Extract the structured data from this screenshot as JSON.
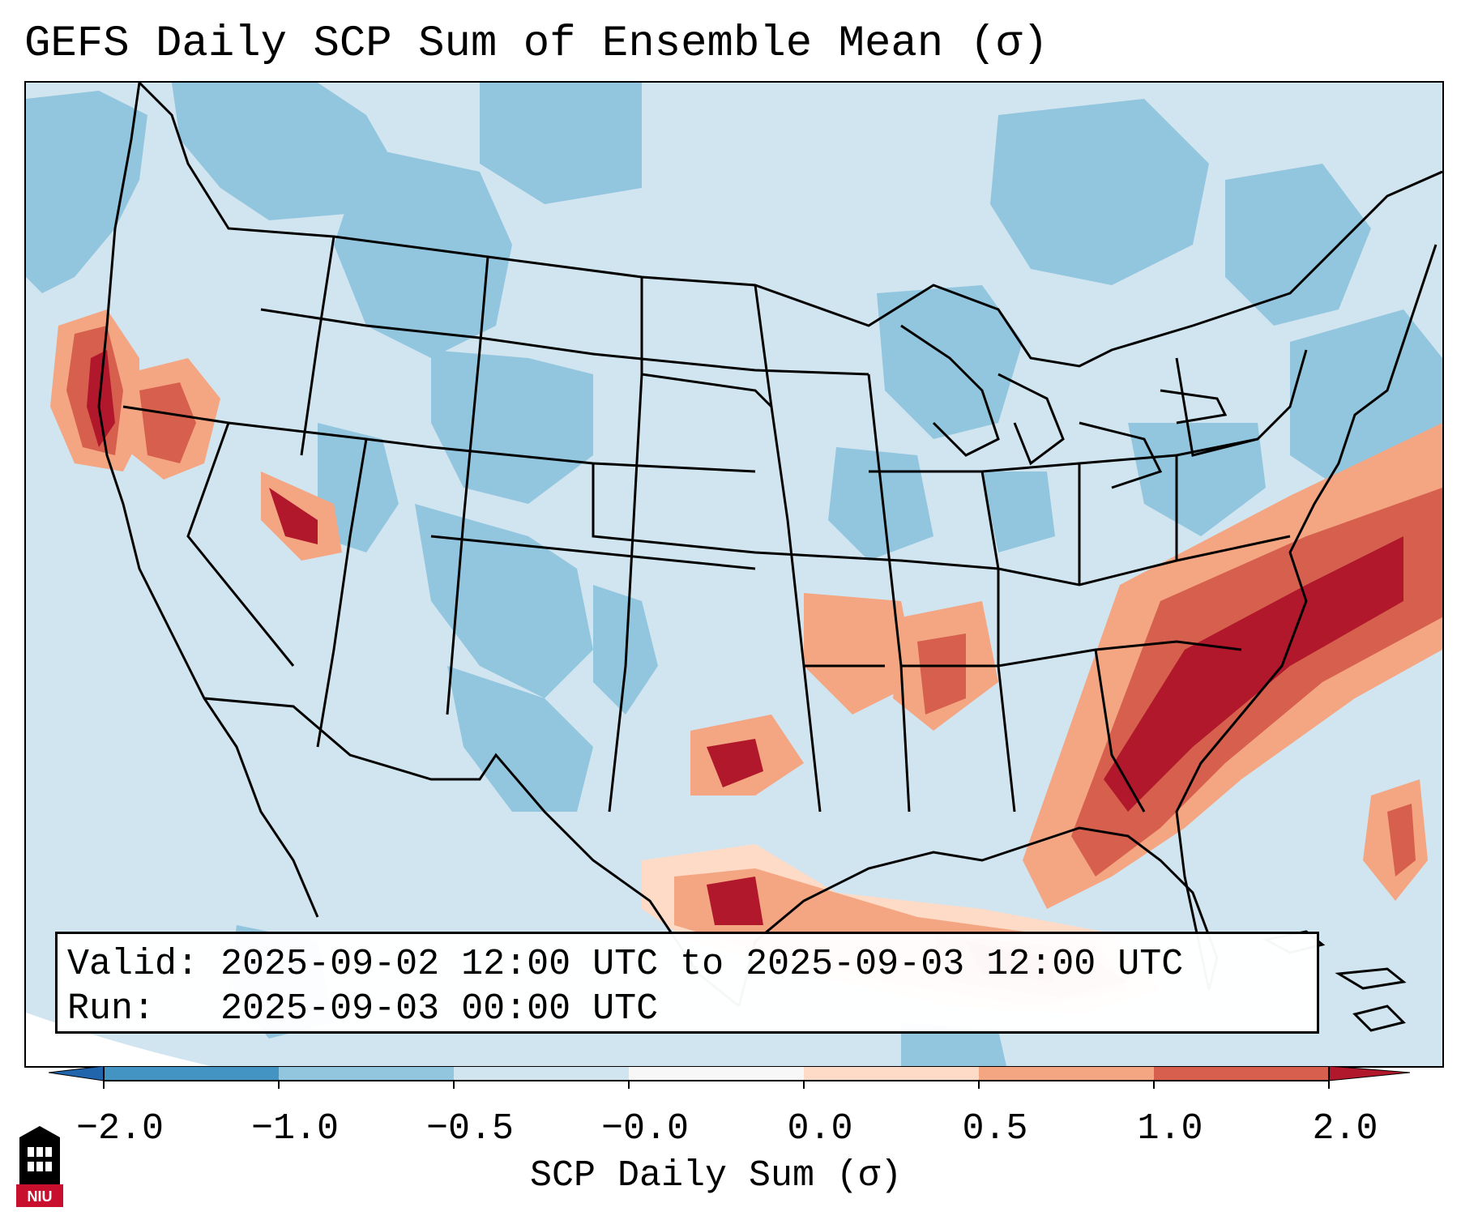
{
  "title": "GEFS Daily SCP Sum of Ensemble Mean (σ)",
  "map": {
    "region": "Continental United States",
    "variable": "SCP Daily Sum",
    "colors": {
      "ocean_background": "#d1e5f0",
      "outside_domain": "#ffffff",
      "state_lines": "#000000"
    }
  },
  "info_box": {
    "valid_label": "Valid:",
    "valid_value": "2025-09-02 12:00 UTC to 2025-09-03 12:00 UTC",
    "run_label": "Run:",
    "run_value": "2025-09-03 00:00 UTC"
  },
  "colorbar": {
    "label": "SCP Daily Sum (σ)",
    "ticks": [
      "−2.0",
      "−1.0",
      "−0.5",
      "−0.0",
      "0.0",
      "0.5",
      "1.0",
      "2.0"
    ],
    "colors": [
      "#4393c3",
      "#92c5de",
      "#d1e5f0",
      "#f7f7f7",
      "#fddbc7",
      "#f4a582",
      "#d6604d",
      "#b2182b"
    ],
    "under_color": "#2166ac",
    "over_color": "#b2182b"
  },
  "logo": {
    "text": "NIU",
    "icon": "niu-tower-icon",
    "brand_color": "#c8102e"
  }
}
